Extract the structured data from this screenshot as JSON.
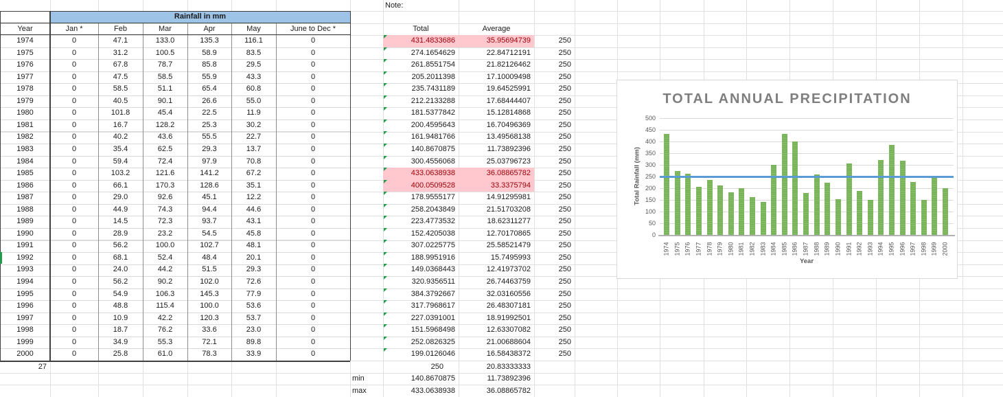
{
  "sheet": {
    "note_label": "Note:",
    "monthly_table": {
      "title": "Rainfall in mm",
      "columns": [
        "Year",
        "Jan *",
        "Feb",
        "Mar",
        "Apr",
        "May",
        "June to Dec *"
      ],
      "rows": [
        {
          "year": "1974",
          "values": [
            "0",
            "47.1",
            "133.0",
            "135.3",
            "116.1",
            "0"
          ]
        },
        {
          "year": "1975",
          "values": [
            "0",
            "31.2",
            "100.5",
            "58.9",
            "83.5",
            "0"
          ]
        },
        {
          "year": "1976",
          "values": [
            "0",
            "67.8",
            "78.7",
            "85.8",
            "29.5",
            "0"
          ]
        },
        {
          "year": "1977",
          "values": [
            "0",
            "47.5",
            "58.5",
            "55.9",
            "43.3",
            "0"
          ]
        },
        {
          "year": "1978",
          "values": [
            "0",
            "58.5",
            "51.1",
            "65.4",
            "60.8",
            "0"
          ]
        },
        {
          "year": "1979",
          "values": [
            "0",
            "40.5",
            "90.1",
            "26.6",
            "55.0",
            "0"
          ]
        },
        {
          "year": "1980",
          "values": [
            "0",
            "101.8",
            "45.4",
            "22.5",
            "11.9",
            "0"
          ]
        },
        {
          "year": "1981",
          "values": [
            "0",
            "16.7",
            "128.2",
            "25.3",
            "30.2",
            "0"
          ]
        },
        {
          "year": "1982",
          "values": [
            "0",
            "40.2",
            "43.6",
            "55.5",
            "22.7",
            "0"
          ]
        },
        {
          "year": "1983",
          "values": [
            "0",
            "35.4",
            "62.5",
            "29.3",
            "13.7",
            "0"
          ]
        },
        {
          "year": "1984",
          "values": [
            "0",
            "59.4",
            "72.4",
            "97.9",
            "70.8",
            "0"
          ]
        },
        {
          "year": "1985",
          "values": [
            "0",
            "103.2",
            "121.6",
            "141.2",
            "67.2",
            "0"
          ]
        },
        {
          "year": "1986",
          "values": [
            "0",
            "66.1",
            "170.3",
            "128.6",
            "35.1",
            "0"
          ]
        },
        {
          "year": "1987",
          "values": [
            "0",
            "29.0",
            "92.6",
            "45.1",
            "12.2",
            "0"
          ]
        },
        {
          "year": "1988",
          "values": [
            "0",
            "44.9",
            "74.3",
            "94.4",
            "44.6",
            "0"
          ]
        },
        {
          "year": "1989",
          "values": [
            "0",
            "14.5",
            "72.3",
            "93.7",
            "43.1",
            "0"
          ]
        },
        {
          "year": "1990",
          "values": [
            "0",
            "28.9",
            "23.2",
            "54.5",
            "45.8",
            "0"
          ]
        },
        {
          "year": "1991",
          "values": [
            "0",
            "56.2",
            "100.0",
            "102.7",
            "48.1",
            "0"
          ]
        },
        {
          "year": "1992",
          "values": [
            "0",
            "68.1",
            "52.4",
            "48.4",
            "20.1",
            "0"
          ],
          "marker": true
        },
        {
          "year": "1993",
          "values": [
            "0",
            "24.0",
            "44.2",
            "51.5",
            "29.3",
            "0"
          ]
        },
        {
          "year": "1994",
          "values": [
            "0",
            "56.2",
            "90.2",
            "102.0",
            "72.6",
            "0"
          ]
        },
        {
          "year": "1995",
          "values": [
            "0",
            "54.9",
            "106.3",
            "145.3",
            "77.9",
            "0"
          ]
        },
        {
          "year": "1996",
          "values": [
            "0",
            "48.8",
            "115.4",
            "100.0",
            "53.6",
            "0"
          ]
        },
        {
          "year": "1997",
          "values": [
            "0",
            "10.9",
            "42.2",
            "120.3",
            "53.7",
            "0"
          ]
        },
        {
          "year": "1998",
          "values": [
            "0",
            "18.7",
            "76.2",
            "33.6",
            "23.0",
            "0"
          ]
        },
        {
          "year": "1999",
          "values": [
            "0",
            "34.9",
            "55.3",
            "72.1",
            "89.8",
            "0"
          ]
        },
        {
          "year": "2000",
          "values": [
            "0",
            "25.8",
            "61.0",
            "78.3",
            "33.9",
            "0"
          ]
        }
      ],
      "count_footer": "27"
    },
    "stats": {
      "total_header": "Total",
      "average_header": "Average",
      "rows": [
        {
          "total": "431.4833686",
          "average": "35.95694739",
          "target": "250",
          "highlight": true
        },
        {
          "total": "274.1654629",
          "average": "22.84712191",
          "target": "250",
          "highlight": false
        },
        {
          "total": "261.8551754",
          "average": "21.82126462",
          "target": "250",
          "highlight": false
        },
        {
          "total": "205.2011398",
          "average": "17.10009498",
          "target": "250",
          "highlight": false
        },
        {
          "total": "235.7431189",
          "average": "19.64525991",
          "target": "250",
          "highlight": false
        },
        {
          "total": "212.2133288",
          "average": "17.68444407",
          "target": "250",
          "highlight": false
        },
        {
          "total": "181.5377842",
          "average": "15.12814868",
          "target": "250",
          "highlight": false
        },
        {
          "total": "200.4595643",
          "average": "16.70496369",
          "target": "250",
          "highlight": false
        },
        {
          "total": "161.9481766",
          "average": "13.49568138",
          "target": "250",
          "highlight": false
        },
        {
          "total": "140.8670875",
          "average": "11.73892396",
          "target": "250",
          "highlight": false
        },
        {
          "total": "300.4556068",
          "average": "25.03796723",
          "target": "250",
          "highlight": false
        },
        {
          "total": "433.0638938",
          "average": "36.08865782",
          "target": "250",
          "highlight": true
        },
        {
          "total": "400.0509528",
          "average": "33.3375794",
          "target": "250",
          "highlight": true
        },
        {
          "total": "178.9555177",
          "average": "14.91295981",
          "target": "250",
          "highlight": false
        },
        {
          "total": "258.2043849",
          "average": "21.51703208",
          "target": "250",
          "highlight": false
        },
        {
          "total": "223.4773532",
          "average": "18.62311277",
          "target": "250",
          "highlight": false
        },
        {
          "total": "152.4205038",
          "average": "12.70170865",
          "target": "250",
          "highlight": false
        },
        {
          "total": "307.0225775",
          "average": "25.58521479",
          "target": "250",
          "highlight": false
        },
        {
          "total": "188.9951916",
          "average": "15.7495993",
          "target": "250",
          "highlight": false
        },
        {
          "total": "149.0368443",
          "average": "12.41973702",
          "target": "250",
          "highlight": false
        },
        {
          "total": "320.9356511",
          "average": "26.74463759",
          "target": "250",
          "highlight": false
        },
        {
          "total": "384.3792667",
          "average": "32.03160556",
          "target": "250",
          "highlight": false
        },
        {
          "total": "317.7968617",
          "average": "26.48307181",
          "target": "250",
          "highlight": false
        },
        {
          "total": "227.0391001",
          "average": "18.91992501",
          "target": "250",
          "highlight": false
        },
        {
          "total": "151.5968498",
          "average": "12.63307082",
          "target": "250",
          "highlight": false
        },
        {
          "total": "252.0826325",
          "average": "21.00688604",
          "target": "250",
          "highlight": false
        },
        {
          "total": "199.0126046",
          "average": "16.58438372",
          "target": "250",
          "highlight": false
        }
      ],
      "summary": {
        "total": "250",
        "average": "20.83333333"
      },
      "min": {
        "label": "min",
        "total": "140.8670875",
        "average": "11.73892396"
      },
      "max": {
        "label": "max",
        "total": "433.0638938",
        "average": "36.08865782"
      }
    }
  },
  "chart_data": {
    "type": "bar",
    "title": "TOTAL ANNUAL PRECIPITATION",
    "xlabel": "Year",
    "ylabel": "Total Rainfall (mm)",
    "ylim": [
      0,
      500
    ],
    "ytick_step": 50,
    "grid": true,
    "legend": "none",
    "categories": [
      "1974",
      "1975",
      "1976",
      "1977",
      "1978",
      "1979",
      "1980",
      "1981",
      "1982",
      "1983",
      "1984",
      "1985",
      "1986",
      "1987",
      "1988",
      "1989",
      "1990",
      "1991",
      "1992",
      "1993",
      "1994",
      "1995",
      "1996",
      "1997",
      "1998",
      "1999",
      "2000"
    ],
    "values": [
      431.48,
      274.17,
      261.86,
      205.2,
      235.74,
      212.21,
      181.54,
      200.46,
      161.95,
      140.87,
      300.46,
      433.06,
      400.05,
      178.96,
      258.2,
      223.48,
      152.42,
      307.02,
      189.0,
      149.04,
      320.94,
      384.38,
      317.8,
      227.04,
      151.6,
      252.08,
      199.01
    ],
    "reference_line": {
      "value": 250,
      "color": "#5b9bd5"
    },
    "bar_color": "#77b357",
    "title_color": "#7f7f7f",
    "axis_text_color": "#595959"
  },
  "colors": {
    "table_header_fill": "#9dc3e6",
    "highlight_fill": "#ffc7ce",
    "highlight_text": "#9c0006",
    "error_triangle": "#1f9d4b"
  }
}
